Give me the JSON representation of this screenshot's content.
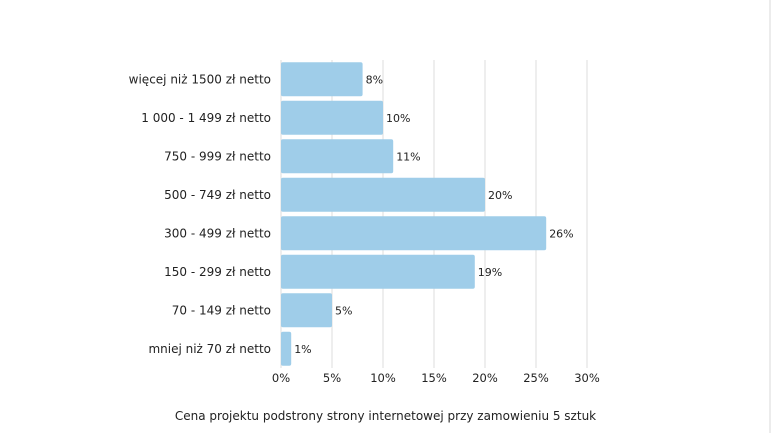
{
  "chart_data": {
    "type": "bar",
    "orientation": "horizontal",
    "categories": [
      "więcej niż 1500 zł netto",
      "1 000 - 1 499 zł netto",
      "750 - 999 zł netto",
      "500 - 749 zł netto",
      "300 - 499 zł netto",
      "150 - 299 zł netto",
      "70 - 149 zł netto",
      "mniej niż 70 zł netto"
    ],
    "values": [
      8,
      10,
      11,
      20,
      26,
      19,
      5,
      1
    ],
    "data_labels": [
      "8%",
      "10%",
      "11%",
      "20%",
      "26%",
      "19%",
      "5%",
      "1%"
    ],
    "xlim": [
      0,
      30
    ],
    "x_ticks": [
      "0%",
      "5%",
      "10%",
      "15%",
      "20%",
      "25%",
      "30%"
    ],
    "xlabel": "Cena projektu podstrony strony internetowej przy zamowieniu 5 sztuk",
    "ylabel": "",
    "grid": true,
    "bar_color": "#9fcde9"
  }
}
